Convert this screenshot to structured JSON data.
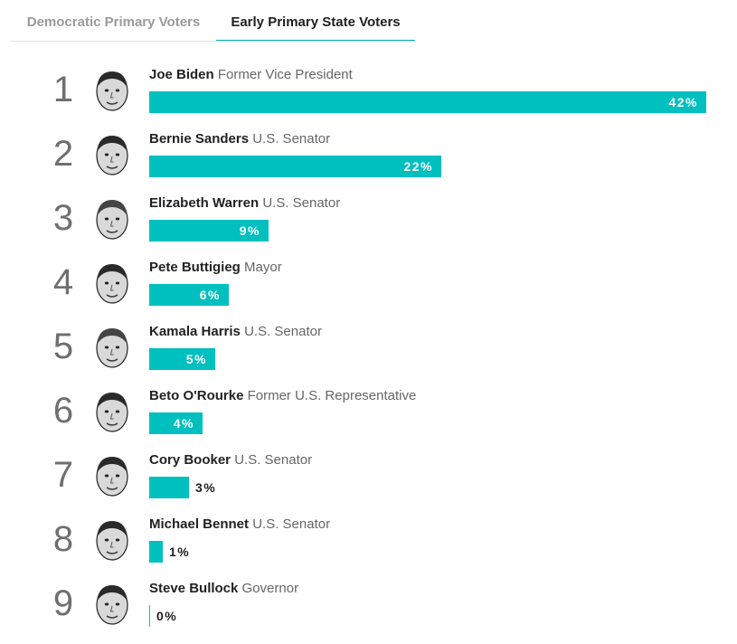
{
  "tabs": [
    {
      "label": "Democratic Primary Voters",
      "active": false
    },
    {
      "label": "Early Primary State Voters",
      "active": true
    }
  ],
  "colors": {
    "bar": "#00bfbf",
    "active_tab_underline": "#00b3b3"
  },
  "chart_data": {
    "type": "bar",
    "orientation": "horizontal",
    "value_suffix": "%",
    "categories": [
      "Joe Biden",
      "Bernie Sanders",
      "Elizabeth Warren",
      "Pete Buttigieg",
      "Kamala Harris",
      "Beto O'Rourke",
      "Cory Booker",
      "Michael Bennet",
      "Steve Bullock"
    ],
    "values": [
      42,
      22,
      9,
      6,
      5,
      4,
      3,
      1,
      0
    ],
    "candidates": [
      {
        "rank": "1",
        "name": "Joe Biden",
        "title": "Former Vice President",
        "value": 42,
        "value_label": "42%"
      },
      {
        "rank": "2",
        "name": "Bernie Sanders",
        "title": "U.S. Senator",
        "value": 22,
        "value_label": "22%"
      },
      {
        "rank": "3",
        "name": "Elizabeth Warren",
        "title": "U.S. Senator",
        "value": 9,
        "value_label": "9%"
      },
      {
        "rank": "4",
        "name": "Pete Buttigieg",
        "title": "Mayor",
        "value": 6,
        "value_label": "6%"
      },
      {
        "rank": "5",
        "name": "Kamala Harris",
        "title": "U.S. Senator",
        "value": 5,
        "value_label": "5%"
      },
      {
        "rank": "6",
        "name": "Beto O'Rourke",
        "title": "Former U.S. Representative",
        "value": 4,
        "value_label": "4%"
      },
      {
        "rank": "7",
        "name": "Cory Booker",
        "title": "U.S. Senator",
        "value": 3,
        "value_label": "3%"
      },
      {
        "rank": "8",
        "name": "Michael Bennet",
        "title": "U.S. Senator",
        "value": 1,
        "value_label": "1%"
      },
      {
        "rank": "9",
        "name": "Steve Bullock",
        "title": "Governor",
        "value": 0,
        "value_label": "0%"
      }
    ]
  }
}
